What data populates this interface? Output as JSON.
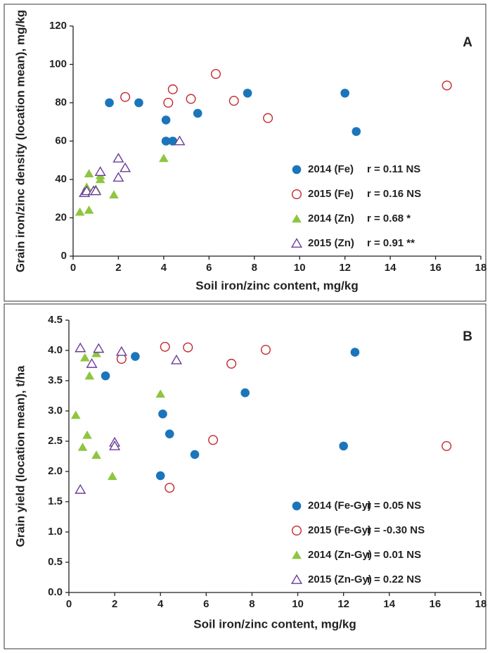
{
  "chart_data": [
    {
      "type": "scatter",
      "panel_label": "A",
      "xlabel": "Soil iron/zinc content, mg/kg",
      "ylabel": "Grain iron/zinc density (location mean), mg/kg",
      "xlim": [
        0,
        18
      ],
      "ylim": [
        0,
        120
      ],
      "xticks": [
        0,
        2,
        4,
        6,
        8,
        10,
        12,
        14,
        16,
        18
      ],
      "yticks": [
        0,
        20,
        40,
        60,
        80,
        100,
        120
      ],
      "legend": "lower right",
      "series": [
        {
          "name": "2014 (Fe)",
          "note": "r = 0.11 NS",
          "color": "#1b75bb",
          "marker": "circle",
          "filled": true,
          "x": [
            1.6,
            2.9,
            4.1,
            4.1,
            4.4,
            5.5,
            7.7,
            12,
            12.5
          ],
          "values": [
            80,
            80,
            71,
            60,
            60,
            74.5,
            85,
            85,
            65
          ]
        },
        {
          "name": "2015 (Fe)",
          "note": "r = 0.16 NS",
          "color": "#c1272d",
          "marker": "circle",
          "filled": false,
          "x": [
            2.3,
            4.2,
            4.4,
            5.2,
            6.3,
            7.1,
            8.6,
            16.5
          ],
          "values": [
            83,
            80,
            87,
            82,
            95,
            81,
            72,
            89
          ]
        },
        {
          "name": "2014 (Zn)",
          "note": "r = 0.68 *",
          "color": "#8dc63f",
          "marker": "triangle",
          "filled": true,
          "x": [
            0.3,
            0.6,
            0.7,
            0.7,
            1.0,
            1.2,
            1.2,
            1.8,
            4.0
          ],
          "values": [
            23,
            36,
            43,
            24,
            35,
            42,
            40,
            32,
            51
          ]
        },
        {
          "name": "2015 (Zn)",
          "note": "r = 0.91 **",
          "color": "#6a3d9a",
          "marker": "triangle",
          "filled": false,
          "x": [
            0.5,
            0.6,
            0.9,
            1.0,
            1.2,
            2.0,
            2.0,
            2.3,
            4.7
          ],
          "values": [
            33,
            34,
            34,
            34,
            44,
            51,
            41,
            46,
            60
          ]
        }
      ]
    },
    {
      "type": "scatter",
      "panel_label": "B",
      "xlabel": "Soil iron/zinc content, mg/kg",
      "ylabel": "Grain yield (location mean), t/ha",
      "xlim": [
        0,
        18
      ],
      "ylim": [
        0,
        4.5
      ],
      "xticks": [
        0,
        2,
        4,
        6,
        8,
        10,
        12,
        14,
        16,
        18
      ],
      "yticks": [
        {
          "value": 0,
          "label": "0.0"
        },
        0.5,
        {
          "value": 1,
          "label": "1.0"
        },
        1.5,
        {
          "value": 2,
          "label": "2.0"
        },
        2.5,
        {
          "value": 3,
          "label": "3.0"
        },
        3.5,
        {
          "value": 4,
          "label": "4.0"
        },
        4.5
      ],
      "legend": "lower right",
      "series": [
        {
          "name": "2014 (Fe-Gy)",
          "note": "r = 0.05 NS",
          "color": "#1b75bb",
          "marker": "circle",
          "filled": true,
          "x": [
            1.6,
            2.9,
            4.1,
            4.4,
            4.0,
            5.5,
            7.7,
            12,
            12.5
          ],
          "values": [
            3.58,
            3.9,
            2.95,
            2.62,
            1.93,
            2.28,
            3.3,
            2.42,
            3.97
          ]
        },
        {
          "name": "2015 (Fe-Gy)",
          "note": "r = -0.30 NS",
          "color": "#c1272d",
          "marker": "circle",
          "filled": false,
          "x": [
            2.3,
            4.2,
            5.2,
            7.1,
            8.6,
            6.3,
            4.4,
            16.5
          ],
          "values": [
            3.86,
            4.06,
            4.05,
            3.78,
            4.01,
            2.52,
            1.73,
            2.42
          ]
        },
        {
          "name": "2014 (Zn-Gy)",
          "note": "r = 0.01 NS",
          "color": "#8dc63f",
          "marker": "triangle",
          "filled": true,
          "x": [
            0.3,
            0.6,
            0.7,
            0.8,
            0.9,
            1.2,
            1.2,
            1.9,
            4.0
          ],
          "values": [
            2.93,
            2.4,
            3.88,
            2.6,
            3.58,
            3.95,
            2.27,
            1.92,
            3.28
          ]
        },
        {
          "name": "2015 (Zn-Gy)",
          "note": "r = 0.22 NS",
          "color": "#6a3d9a",
          "marker": "triangle",
          "filled": false,
          "x": [
            0.5,
            1.0,
            1.3,
            2.3,
            4.7,
            2.0,
            2.0,
            0.5
          ],
          "values": [
            4.04,
            3.78,
            4.03,
            3.98,
            3.84,
            2.48,
            2.42,
            1.7
          ]
        }
      ]
    }
  ]
}
